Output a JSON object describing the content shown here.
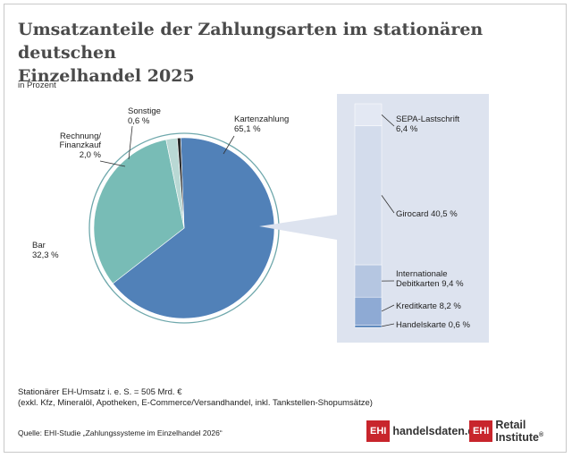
{
  "header": {
    "title_line1": "Umsatzanteile der Zahlungsarten im stationären deutschen",
    "title_line2": "Einzelhandel 2025",
    "unit": "in Prozent"
  },
  "colors": {
    "kartenzahlung": "#5181b8",
    "bar": "#78bcb6",
    "rechnung": "#b9d8d4",
    "sonstige": "#2a2a2a",
    "ring": "#6fa8ac",
    "panel_bg": "#dde3ef",
    "sepa": "#e3e8f3",
    "girocard": "#d3dcec",
    "international": "#b5c6e1",
    "kredit": "#8eaad4",
    "handels": "#4a7bb5"
  },
  "chart_data": {
    "type": "pie",
    "slices": [
      {
        "name": "Kartenzahlung",
        "value": 65.1,
        "label": "Kartenzahlung",
        "value_label": "65,1 %"
      },
      {
        "name": "Bar",
        "value": 32.3,
        "label": "Bar",
        "value_label": "32,3 %"
      },
      {
        "name": "Rechnung/ Finanzkauf",
        "value": 2.0,
        "label_line1": "Rechnung/",
        "label_line2": "Finanzkauf",
        "value_label": "2,0 %"
      },
      {
        "name": "Sonstige",
        "value": 0.6,
        "label": "Sonstige",
        "value_label": "0,6 %"
      }
    ],
    "breakdown": {
      "of": "Kartenzahlung",
      "type": "stacked_bar",
      "segments": [
        {
          "name": "SEPA-Lastschrift",
          "value": 6.4,
          "label_line1": "SEPA-Lastschrift",
          "label_line2": "6,4 %"
        },
        {
          "name": "Girocard",
          "value": 40.5,
          "label_line1": "Girocard 40,5 %"
        },
        {
          "name": "Internationale Debitkarten",
          "value": 9.4,
          "label_line1": "Internationale",
          "label_line2": "Debitkarten 9,4 %"
        },
        {
          "name": "Kreditkarte",
          "value": 8.2,
          "label_line1": "Kreditkarte  8,2 %"
        },
        {
          "name": "Handelskarte",
          "value": 0.6,
          "label_line1": "Handelskarte 0,6 %"
        }
      ]
    }
  },
  "notes": {
    "line1": "Stationärer EH-Umsatz i. e. S. = 505 Mrd. €",
    "line2": "(exkl. Kfz, Mineralöl, Apotheken, E-Commerce/Versandhandel, inkl. Tankstellen-Shopumsätze)",
    "source": "Quelle: EHI-Studie „Zahlungssysteme im Einzelhandel 2026“"
  },
  "logos": {
    "box1": "EHI",
    "text1": "handelsdaten.de",
    "box2": "EHI",
    "text2": "Retail Institute",
    "reg": "®"
  }
}
